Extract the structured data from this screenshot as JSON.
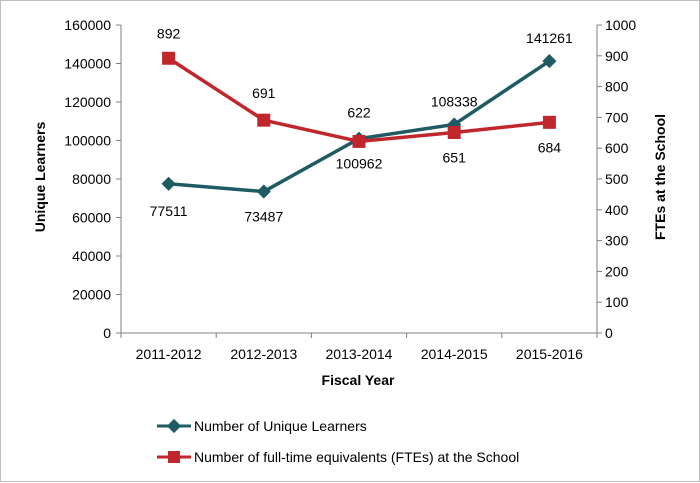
{
  "chart_data": {
    "type": "line",
    "title": "",
    "xlabel": "Fiscal Year",
    "ylabel": "Unique Learners",
    "y2label": "FTEs at the School",
    "categories": [
      "2011-2012",
      "2012-2013",
      "2013-2014",
      "2014-2015",
      "2015-2016"
    ],
    "ylim": [
      0,
      160000
    ],
    "yticks": [
      "0",
      "20000",
      "40000",
      "60000",
      "80000",
      "100000",
      "120000",
      "140000",
      "160000"
    ],
    "y2lim": [
      0,
      1000
    ],
    "y2ticks": [
      "0",
      "100",
      "200",
      "300",
      "400",
      "500",
      "600",
      "700",
      "800",
      "900",
      "1000"
    ],
    "grid": false,
    "legend_position": "bottom",
    "series": [
      {
        "name": "Number of Unique Learners",
        "axis": "left",
        "color": "#1f5b63",
        "marker": "diamond",
        "values": [
          77511,
          73487,
          100962,
          108338,
          141261
        ],
        "labels": [
          "77511",
          "73487",
          "100962",
          "108338",
          "141261"
        ]
      },
      {
        "name": "Number of full-time equivalents (FTEs) at the School",
        "axis": "right",
        "color": "#c0272d",
        "marker": "square",
        "values": [
          892,
          691,
          622,
          651,
          684
        ],
        "labels": [
          "892",
          "691",
          "622",
          "651",
          "684"
        ]
      }
    ]
  }
}
